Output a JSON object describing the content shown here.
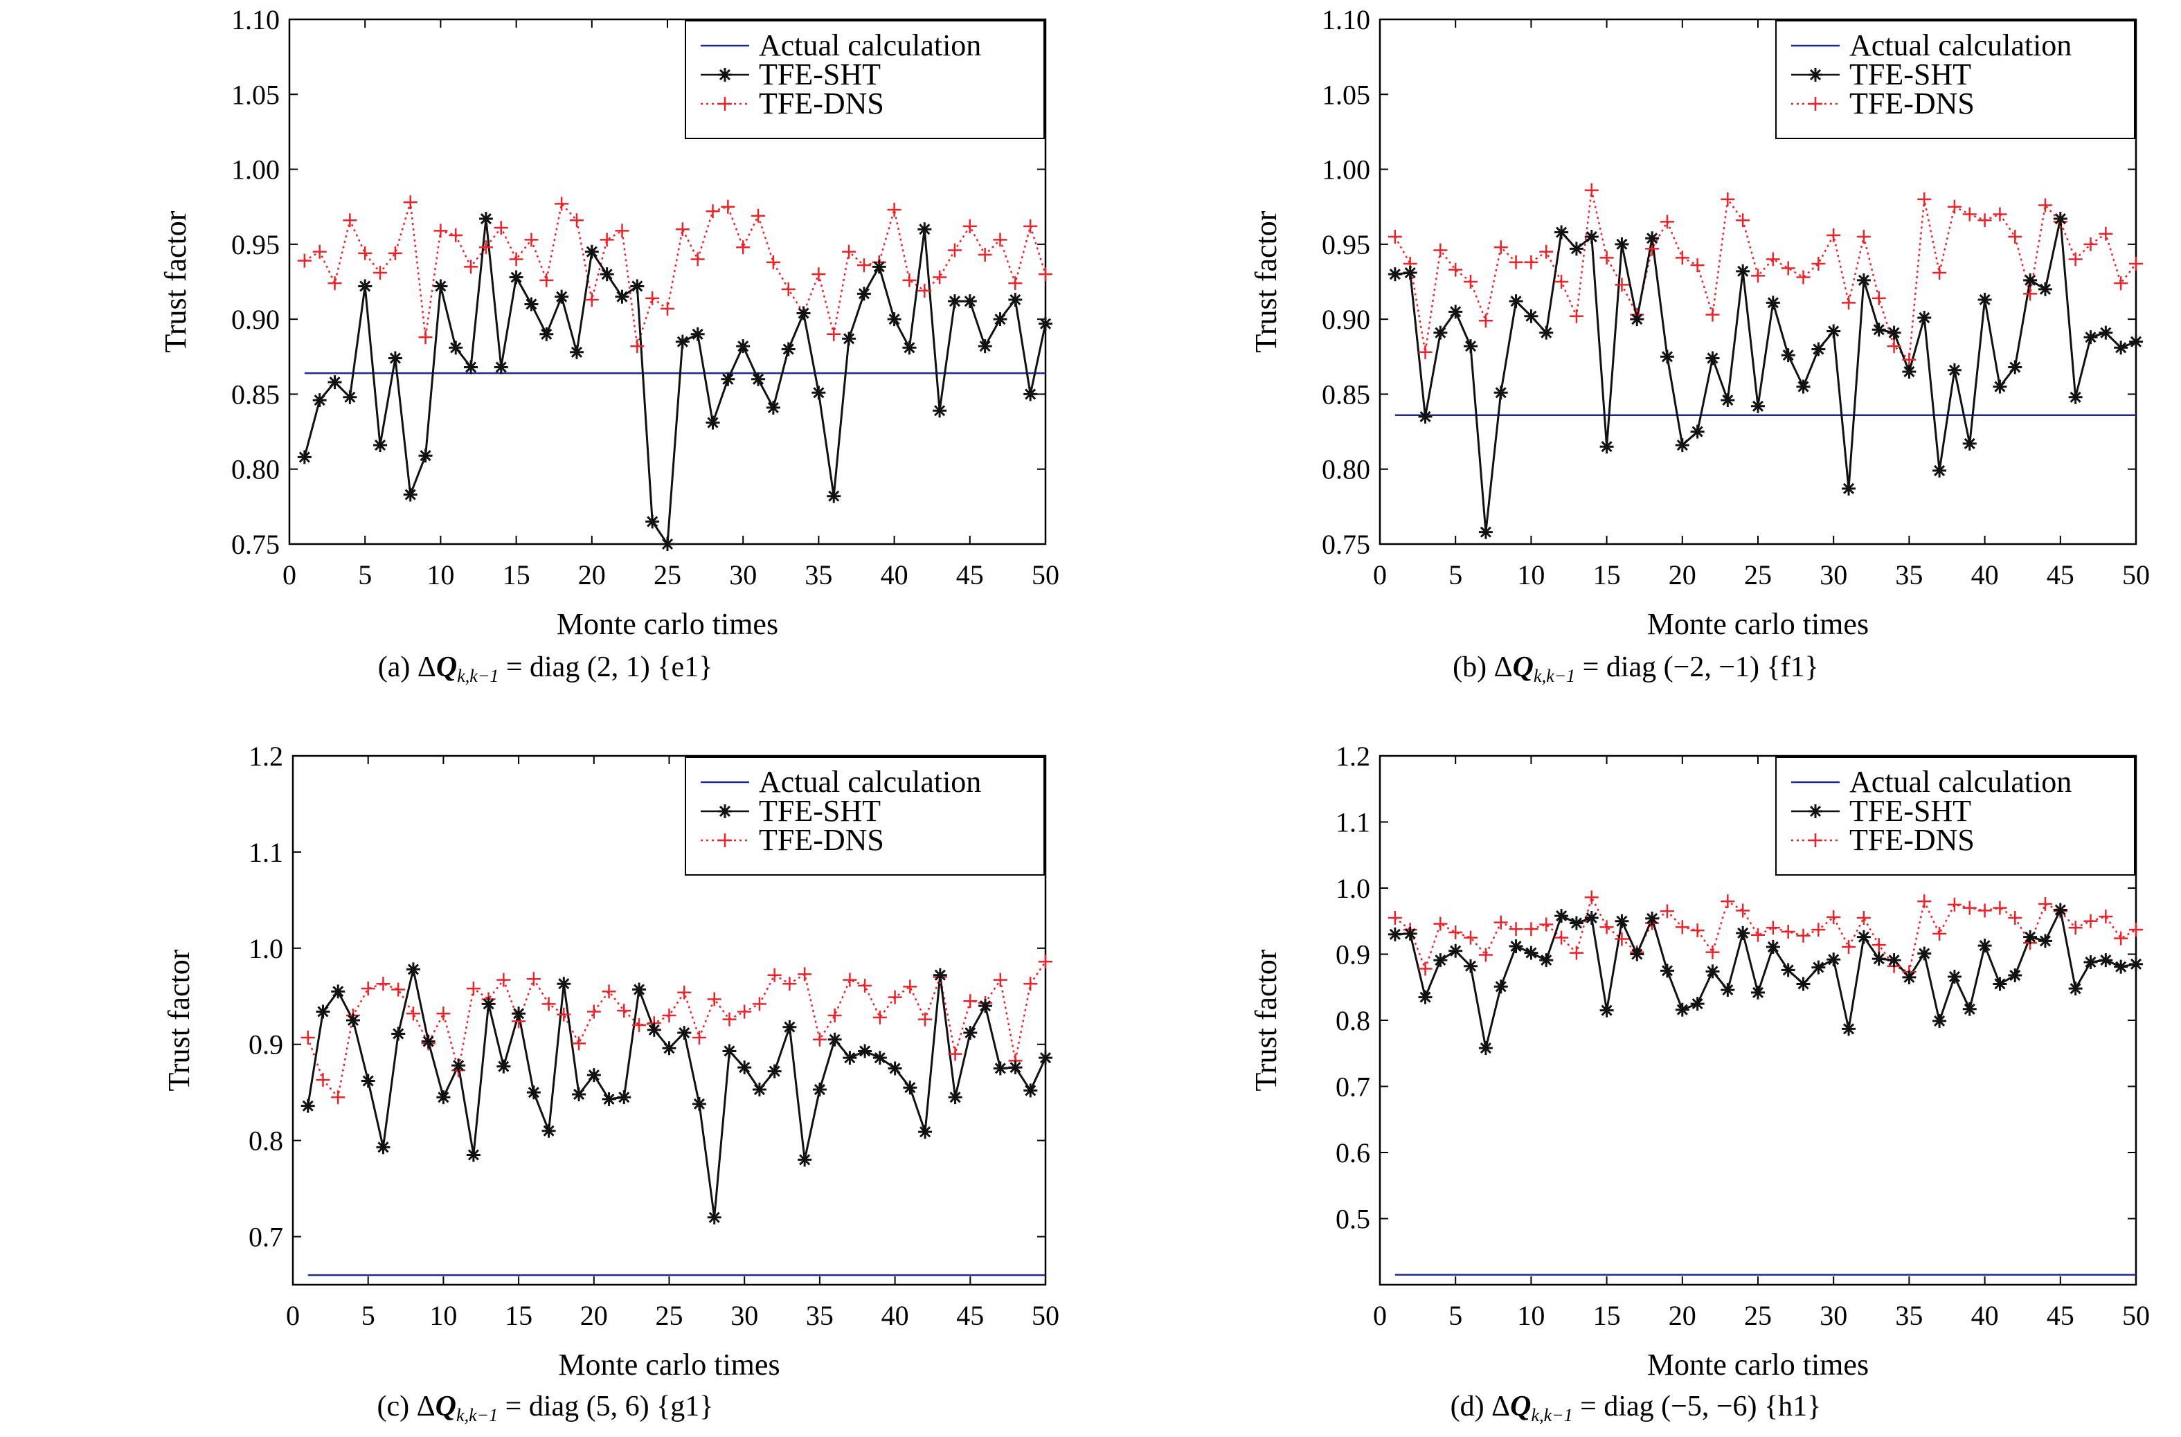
{
  "colors": {
    "actual": "#1f2a8c",
    "sht": "#111111",
    "dns": "#e8232a"
  },
  "legend": [
    "Actual calculation",
    "TFE-SHT",
    "TFE-DNS"
  ],
  "chart_data": [
    {
      "type": "line",
      "caption": {
        "label": "(a)",
        "expr": "= diag (2, 1)",
        "set": "{e1}"
      },
      "xlabel": "Monte carlo times",
      "ylabel": "Trust factor",
      "xlim": [
        0,
        50
      ],
      "ylim": [
        0.75,
        1.1
      ],
      "xticks": [
        0,
        5,
        10,
        15,
        20,
        25,
        30,
        35,
        40,
        45,
        50
      ],
      "yticks": [
        "0.75",
        "0.80",
        "0.85",
        "0.90",
        "0.95",
        "1.00",
        "1.05",
        "1.10"
      ],
      "legend_position": "top-right",
      "series": [
        {
          "name": "Actual calculation",
          "style": "solid",
          "values": [
            0.864,
            0.864
          ],
          "x": [
            1,
            50
          ]
        },
        {
          "name": "TFE-SHT",
          "marker": "asterisk",
          "style": "solid",
          "x": [
            1,
            2,
            3,
            4,
            5,
            6,
            7,
            8,
            9,
            10,
            11,
            12,
            13,
            14,
            15,
            16,
            17,
            18,
            19,
            20,
            21,
            22,
            23,
            24,
            25,
            26,
            27,
            28,
            29,
            30,
            31,
            32,
            33,
            34,
            35,
            36,
            37,
            38,
            39,
            40,
            41,
            42,
            43,
            44,
            45,
            46,
            47,
            48,
            49,
            50
          ],
          "values": [
            0.808,
            0.846,
            0.858,
            0.848,
            0.922,
            0.816,
            0.874,
            0.783,
            0.809,
            0.922,
            0.881,
            0.868,
            0.967,
            0.868,
            0.928,
            0.91,
            0.89,
            0.915,
            0.878,
            0.945,
            0.93,
            0.915,
            0.922,
            0.765,
            0.75,
            0.885,
            0.89,
            0.831,
            0.86,
            0.882,
            0.86,
            0.841,
            0.88,
            0.904,
            0.851,
            0.782,
            0.887,
            0.917,
            0.935,
            0.9,
            0.881,
            0.96,
            0.839,
            0.912,
            0.912,
            0.882,
            0.9,
            0.913,
            0.85,
            0.897
          ]
        },
        {
          "name": "TFE-DNS",
          "marker": "plus",
          "style": "dotted",
          "x": [
            1,
            2,
            3,
            4,
            5,
            6,
            7,
            8,
            9,
            10,
            11,
            12,
            13,
            14,
            15,
            16,
            17,
            18,
            19,
            20,
            21,
            22,
            23,
            24,
            25,
            26,
            27,
            28,
            29,
            30,
            31,
            32,
            33,
            34,
            35,
            36,
            37,
            38,
            39,
            40,
            41,
            42,
            43,
            44,
            45,
            46,
            47,
            48,
            49,
            50
          ],
          "values": [
            0.939,
            0.945,
            0.924,
            0.966,
            0.944,
            0.931,
            0.944,
            0.978,
            0.888,
            0.959,
            0.956,
            0.935,
            0.948,
            0.961,
            0.94,
            0.953,
            0.926,
            0.977,
            0.966,
            0.913,
            0.953,
            0.959,
            0.882,
            0.914,
            0.907,
            0.96,
            0.94,
            0.972,
            0.975,
            0.948,
            0.969,
            0.938,
            0.92,
            0.904,
            0.93,
            0.89,
            0.945,
            0.936,
            0.938,
            0.973,
            0.926,
            0.919,
            0.928,
            0.946,
            0.962,
            0.943,
            0.953,
            0.924,
            0.962,
            0.93
          ]
        }
      ]
    },
    {
      "type": "line",
      "caption": {
        "label": "(b)",
        "expr": "= diag (−2, −1)",
        "set": "{f1}"
      },
      "xlabel": "Monte carlo times",
      "ylabel": "Trust factor",
      "xlim": [
        0,
        50
      ],
      "ylim": [
        0.75,
        1.1
      ],
      "xticks": [
        0,
        5,
        10,
        15,
        20,
        25,
        30,
        35,
        40,
        45,
        50
      ],
      "yticks": [
        "0.75",
        "0.80",
        "0.85",
        "0.90",
        "0.95",
        "1.00",
        "1.05",
        "1.10"
      ],
      "legend_position": "top-right",
      "series": [
        {
          "name": "Actual calculation",
          "style": "solid",
          "values": [
            0.836,
            0.836
          ],
          "x": [
            1,
            50
          ]
        },
        {
          "name": "TFE-SHT",
          "marker": "asterisk",
          "style": "solid",
          "x": [
            1,
            2,
            3,
            4,
            5,
            6,
            7,
            8,
            9,
            10,
            11,
            12,
            13,
            14,
            15,
            16,
            17,
            18,
            19,
            20,
            21,
            22,
            23,
            24,
            25,
            26,
            27,
            28,
            29,
            30,
            31,
            32,
            33,
            34,
            35,
            36,
            37,
            38,
            39,
            40,
            41,
            42,
            43,
            44,
            45,
            46,
            47,
            48,
            49,
            50
          ],
          "values": [
            0.93,
            0.931,
            0.835,
            0.891,
            0.905,
            0.882,
            0.758,
            0.851,
            0.912,
            0.902,
            0.891,
            0.958,
            0.947,
            0.955,
            0.815,
            0.95,
            0.9,
            0.954,
            0.875,
            0.816,
            0.825,
            0.874,
            0.846,
            0.932,
            0.842,
            0.911,
            0.876,
            0.855,
            0.88,
            0.892,
            0.787,
            0.926,
            0.893,
            0.891,
            0.865,
            0.901,
            0.799,
            0.866,
            0.817,
            0.913,
            0.855,
            0.868,
            0.926,
            0.92,
            0.967,
            0.848,
            0.888,
            0.891,
            0.881,
            0.885
          ]
        },
        {
          "name": "TFE-DNS",
          "marker": "plus",
          "style": "dotted",
          "x": [
            1,
            2,
            3,
            4,
            5,
            6,
            7,
            8,
            9,
            10,
            11,
            12,
            13,
            14,
            15,
            16,
            17,
            18,
            19,
            20,
            21,
            22,
            23,
            24,
            25,
            26,
            27,
            28,
            29,
            30,
            31,
            32,
            33,
            34,
            35,
            36,
            37,
            38,
            39,
            40,
            41,
            42,
            43,
            44,
            45,
            46,
            47,
            48,
            49,
            50
          ],
          "values": [
            0.955,
            0.937,
            0.878,
            0.946,
            0.933,
            0.925,
            0.899,
            0.948,
            0.938,
            0.938,
            0.945,
            0.925,
            0.902,
            0.986,
            0.941,
            0.923,
            0.903,
            0.947,
            0.965,
            0.941,
            0.936,
            0.903,
            0.98,
            0.966,
            0.929,
            0.94,
            0.934,
            0.928,
            0.937,
            0.956,
            0.911,
            0.955,
            0.914,
            0.882,
            0.873,
            0.98,
            0.931,
            0.975,
            0.97,
            0.966,
            0.97,
            0.955,
            0.917,
            0.976,
            0.965,
            0.94,
            0.95,
            0.957,
            0.924,
            0.937
          ]
        }
      ]
    },
    {
      "type": "line",
      "caption": {
        "label": "(c)",
        "expr": "= diag (5, 6)",
        "set": "{g1}"
      },
      "xlabel": "Monte carlo times",
      "ylabel": "Trust factor",
      "xlim": [
        0,
        50
      ],
      "ylim": [
        0.65,
        1.2
      ],
      "xticks": [
        0,
        5,
        10,
        15,
        20,
        25,
        30,
        35,
        40,
        45,
        50
      ],
      "yticks": [
        "0.7",
        "0.8",
        "0.9",
        "1.0",
        "1.1",
        "1.2"
      ],
      "legend_position": "top-right",
      "series": [
        {
          "name": "Actual calculation",
          "style": "solid",
          "values": [
            0.66,
            0.66
          ],
          "x": [
            1,
            50
          ]
        },
        {
          "name": "TFE-SHT",
          "marker": "asterisk",
          "style": "solid",
          "x": [
            1,
            2,
            3,
            4,
            5,
            6,
            7,
            8,
            9,
            10,
            11,
            12,
            13,
            14,
            15,
            16,
            17,
            18,
            19,
            20,
            21,
            22,
            23,
            24,
            25,
            26,
            27,
            28,
            29,
            30,
            31,
            32,
            33,
            34,
            35,
            36,
            37,
            38,
            39,
            40,
            41,
            42,
            43,
            44,
            45,
            46,
            47,
            48,
            49,
            50
          ],
          "values": [
            0.836,
            0.934,
            0.955,
            0.925,
            0.862,
            0.793,
            0.911,
            0.978,
            0.903,
            0.845,
            0.878,
            0.785,
            0.942,
            0.877,
            0.932,
            0.85,
            0.81,
            0.963,
            0.848,
            0.868,
            0.843,
            0.845,
            0.957,
            0.915,
            0.896,
            0.912,
            0.838,
            0.72,
            0.893,
            0.876,
            0.853,
            0.872,
            0.918,
            0.78,
            0.853,
            0.905,
            0.886,
            0.893,
            0.886,
            0.875,
            0.855,
            0.809,
            0.972,
            0.845,
            0.912,
            0.94,
            0.875,
            0.876,
            0.852,
            0.886
          ]
        },
        {
          "name": "TFE-DNS",
          "marker": "plus",
          "style": "dotted",
          "x": [
            1,
            2,
            3,
            4,
            5,
            6,
            7,
            8,
            9,
            10,
            11,
            12,
            13,
            14,
            15,
            16,
            17,
            18,
            19,
            20,
            21,
            22,
            23,
            24,
            25,
            26,
            27,
            28,
            29,
            30,
            31,
            32,
            33,
            34,
            35,
            36,
            37,
            38,
            39,
            40,
            41,
            42,
            43,
            44,
            45,
            46,
            47,
            48,
            49,
            50
          ],
          "values": [
            0.907,
            0.863,
            0.845,
            0.93,
            0.958,
            0.963,
            0.957,
            0.932,
            0.901,
            0.932,
            0.873,
            0.958,
            0.947,
            0.967,
            0.924,
            0.968,
            0.942,
            0.931,
            0.901,
            0.934,
            0.955,
            0.935,
            0.92,
            0.922,
            0.93,
            0.954,
            0.907,
            0.947,
            0.926,
            0.934,
            0.942,
            0.972,
            0.963,
            0.973,
            0.905,
            0.93,
            0.967,
            0.961,
            0.928,
            0.949,
            0.96,
            0.926,
            0.97,
            0.89,
            0.945,
            0.943,
            0.967,
            0.883,
            0.963,
            0.986
          ]
        }
      ]
    },
    {
      "type": "line",
      "caption": {
        "label": "(d)",
        "expr": "= diag (−5, −6)",
        "set": "{h1}"
      },
      "xlabel": "Monte carlo times",
      "ylabel": "Trust factor",
      "xlim": [
        0,
        50
      ],
      "ylim": [
        0.4,
        1.2
      ],
      "xticks": [
        0,
        5,
        10,
        15,
        20,
        25,
        30,
        35,
        40,
        45,
        50
      ],
      "yticks": [
        "0.5",
        "0.6",
        "0.7",
        "0.8",
        "0.9",
        "1.0",
        "1.1",
        "1.2"
      ],
      "legend_position": "top-right",
      "series": [
        {
          "name": "Actual calculation",
          "style": "solid",
          "values": [
            0.415,
            0.415
          ],
          "x": [
            1,
            50
          ]
        },
        {
          "name": "TFE-SHT",
          "marker": "asterisk",
          "style": "solid",
          "x": [
            1,
            2,
            3,
            4,
            5,
            6,
            7,
            8,
            9,
            10,
            11,
            12,
            13,
            14,
            15,
            16,
            17,
            18,
            19,
            20,
            21,
            22,
            23,
            24,
            25,
            26,
            27,
            28,
            29,
            30,
            31,
            32,
            33,
            34,
            35,
            36,
            37,
            38,
            39,
            40,
            41,
            42,
            43,
            44,
            45,
            46,
            47,
            48,
            49,
            50
          ],
          "values": [
            0.93,
            0.931,
            0.835,
            0.891,
            0.905,
            0.882,
            0.758,
            0.851,
            0.912,
            0.902,
            0.891,
            0.958,
            0.947,
            0.955,
            0.815,
            0.95,
            0.9,
            0.954,
            0.875,
            0.816,
            0.825,
            0.874,
            0.846,
            0.932,
            0.842,
            0.911,
            0.876,
            0.855,
            0.88,
            0.892,
            0.787,
            0.926,
            0.893,
            0.891,
            0.865,
            0.901,
            0.799,
            0.866,
            0.817,
            0.913,
            0.855,
            0.868,
            0.926,
            0.92,
            0.967,
            0.848,
            0.888,
            0.891,
            0.881,
            0.885
          ]
        },
        {
          "name": "TFE-DNS",
          "marker": "plus",
          "style": "dotted",
          "x": [
            1,
            2,
            3,
            4,
            5,
            6,
            7,
            8,
            9,
            10,
            11,
            12,
            13,
            14,
            15,
            16,
            17,
            18,
            19,
            20,
            21,
            22,
            23,
            24,
            25,
            26,
            27,
            28,
            29,
            30,
            31,
            32,
            33,
            34,
            35,
            36,
            37,
            38,
            39,
            40,
            41,
            42,
            43,
            44,
            45,
            46,
            47,
            48,
            49,
            50
          ],
          "values": [
            0.955,
            0.937,
            0.878,
            0.946,
            0.933,
            0.925,
            0.899,
            0.948,
            0.938,
            0.938,
            0.945,
            0.925,
            0.902,
            0.986,
            0.941,
            0.923,
            0.903,
            0.947,
            0.965,
            0.941,
            0.936,
            0.903,
            0.98,
            0.966,
            0.929,
            0.94,
            0.934,
            0.928,
            0.937,
            0.956,
            0.911,
            0.955,
            0.914,
            0.882,
            0.873,
            0.98,
            0.931,
            0.975,
            0.97,
            0.966,
            0.97,
            0.955,
            0.917,
            0.976,
            0.965,
            0.94,
            0.95,
            0.957,
            0.924,
            0.937
          ]
        }
      ]
    }
  ]
}
